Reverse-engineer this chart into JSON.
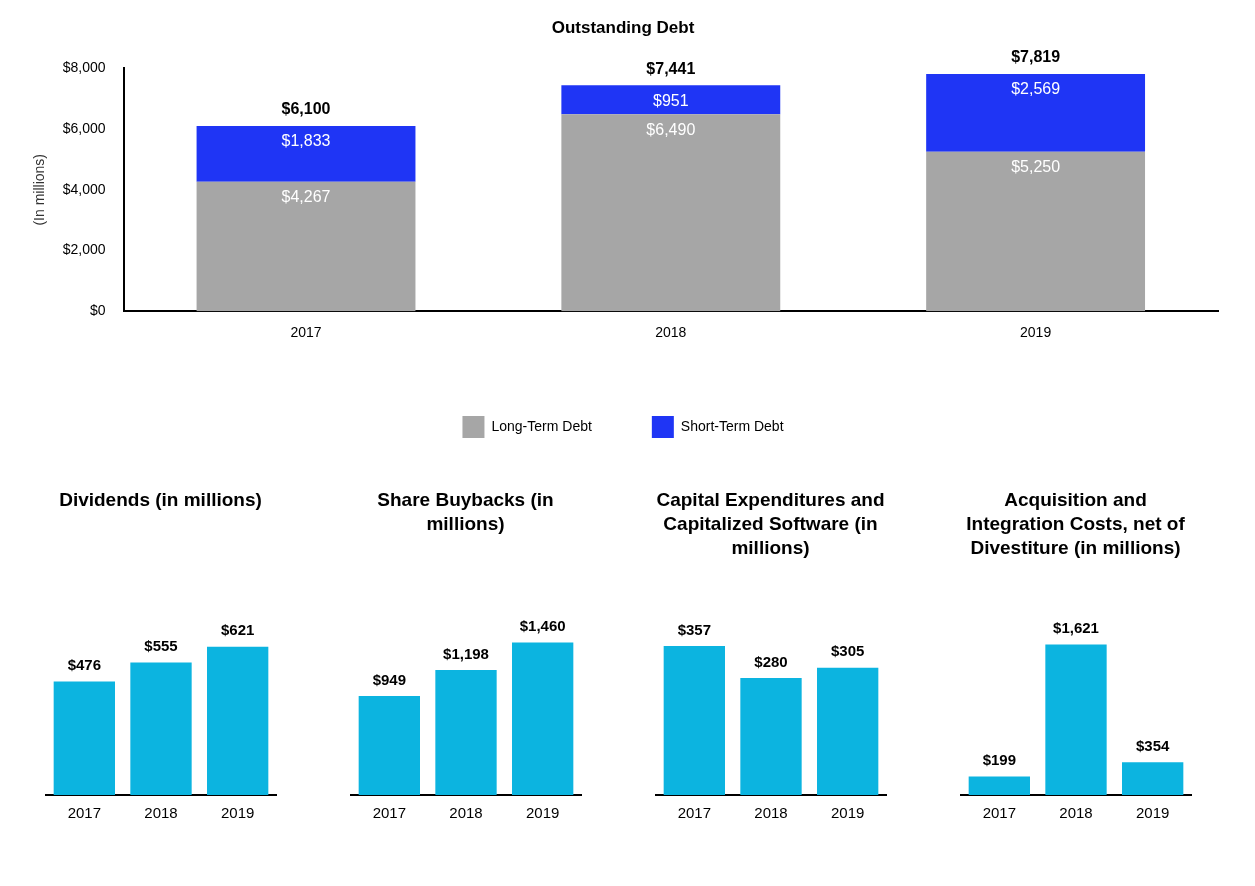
{
  "chart_data": [
    {
      "type": "bar",
      "title": "Outstanding Debt",
      "ylabel": "(In millions)",
      "categories": [
        "2017",
        "2018",
        "2019"
      ],
      "stacked": true,
      "legend": "bottom",
      "grid": false,
      "ylim": [
        0,
        8000
      ],
      "yticks": [
        {
          "value": 0,
          "label": "$0"
        },
        {
          "value": 2000,
          "label": "$2,000"
        },
        {
          "value": 4000,
          "label": "$4,000"
        },
        {
          "value": 6000,
          "label": "$6,000"
        },
        {
          "value": 8000,
          "label": "$8,000"
        }
      ],
      "series": [
        {
          "name": "Long-Term Debt",
          "color": "#a6a6a6",
          "values": [
            4267,
            6490,
            5250
          ],
          "value_labels": [
            "$4,267",
            "$6,490",
            "$5,250"
          ]
        },
        {
          "name": "Short-Term Debt",
          "color": "#1f35f5",
          "values": [
            1833,
            951,
            2569
          ],
          "value_labels": [
            "$1,833",
            "$951",
            "$2,569"
          ]
        }
      ],
      "totals": [
        "$6,100",
        "$7,441",
        "$7,819"
      ]
    },
    {
      "type": "bar",
      "title": "Dividends (in millions)",
      "categories": [
        "2017",
        "2018",
        "2019"
      ],
      "values": [
        476,
        555,
        621
      ],
      "color": "#0cb4e0",
      "value_labels": [
        "$476",
        "$555",
        "$621"
      ],
      "legend": false,
      "grid": false,
      "tick_labels": "x"
    },
    {
      "type": "bar",
      "title": "Share Buybacks (in millions)",
      "categories": [
        "2017",
        "2018",
        "2019"
      ],
      "values": [
        949,
        1198,
        1460
      ],
      "color": "#0cb4e0",
      "value_labels": [
        "$949",
        "$1,198",
        "$1,460"
      ],
      "legend": false,
      "grid": false,
      "tick_labels": "x"
    },
    {
      "type": "bar",
      "title": "Capital Expenditures and Capitalized Software (in millions)",
      "categories": [
        "2017",
        "2018",
        "2019"
      ],
      "values": [
        357,
        280,
        305
      ],
      "color": "#0cb4e0",
      "value_labels": [
        "$357",
        "$280",
        "$305"
      ],
      "legend": false,
      "grid": false,
      "tick_labels": "x"
    },
    {
      "type": "bar",
      "title": "Acquisition and Integration Costs, net of Divestiture (in millions)",
      "categories": [
        "2017",
        "2018",
        "2019"
      ],
      "values": [
        199,
        1621,
        354
      ],
      "color": "#0cb4e0",
      "value_labels": [
        "$199",
        "$1,621",
        "$354"
      ],
      "legend": false,
      "grid": false,
      "tick_labels": "x"
    }
  ]
}
